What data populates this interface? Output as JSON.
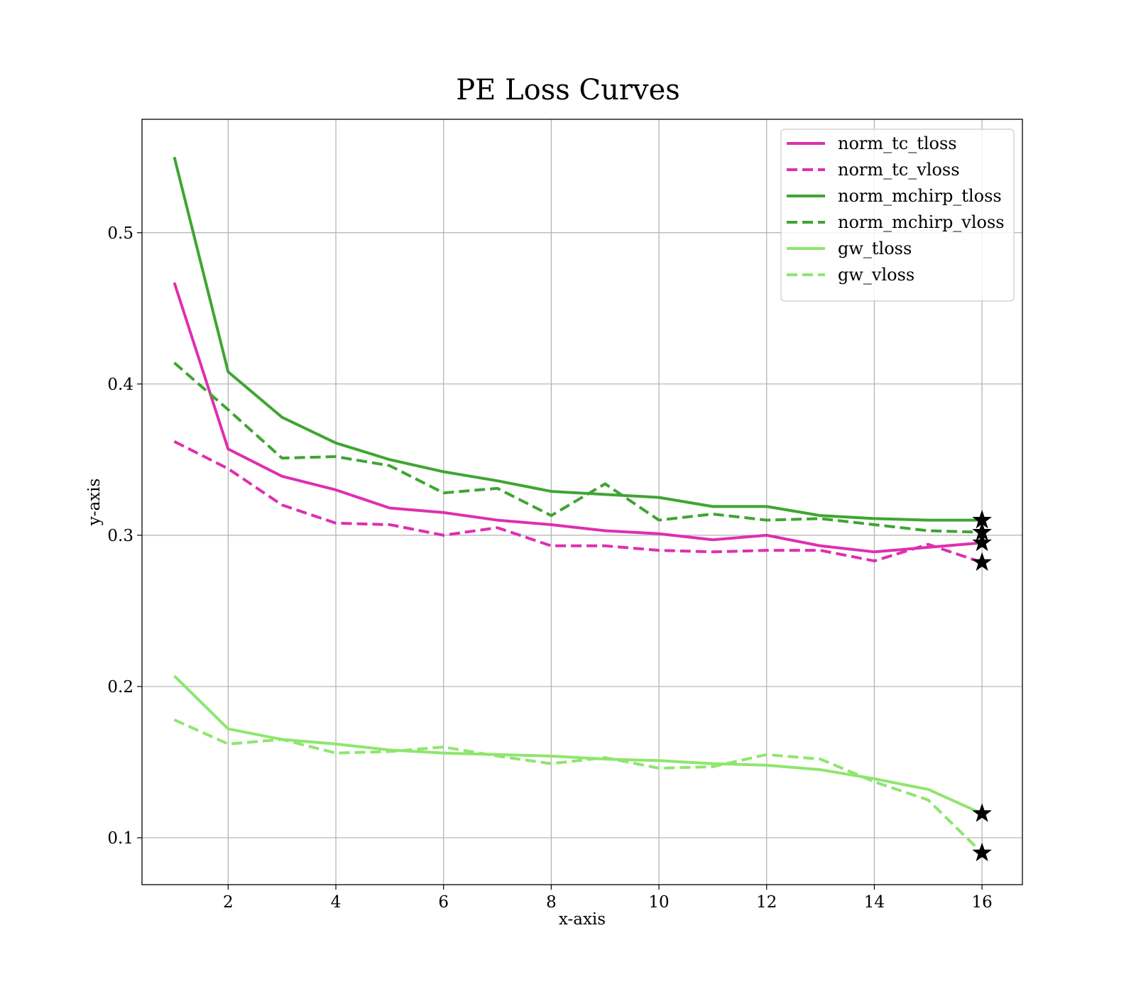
{
  "chart_data": {
    "type": "line",
    "title": "PE Loss Curves",
    "xlabel": "x-axis",
    "ylabel": "y-axis",
    "xlim": [
      0.4,
      16.75
    ],
    "ylim": [
      0.069,
      0.575
    ],
    "xticks": [
      2,
      4,
      6,
      8,
      10,
      12,
      14,
      16
    ],
    "yticks": [
      0.1,
      0.2,
      0.3,
      0.4,
      0.5
    ],
    "grid": true,
    "legend_position": "top-right",
    "x": [
      1,
      2,
      3,
      4,
      5,
      6,
      7,
      8,
      9,
      10,
      11,
      12,
      13,
      14,
      15,
      16
    ],
    "series": [
      {
        "name": "norm_tc_tloss",
        "color": "#de2fb0",
        "dash": "solid",
        "values": [
          0.467,
          0.357,
          0.339,
          0.33,
          0.318,
          0.315,
          0.31,
          0.307,
          0.303,
          0.301,
          0.297,
          0.3,
          0.293,
          0.289,
          0.292,
          0.295
        ]
      },
      {
        "name": "norm_tc_vloss",
        "color": "#de2fb0",
        "dash": "dashed",
        "values": [
          0.362,
          0.344,
          0.32,
          0.308,
          0.307,
          0.3,
          0.305,
          0.293,
          0.293,
          0.29,
          0.289,
          0.29,
          0.29,
          0.283,
          0.294,
          0.282
        ]
      },
      {
        "name": "norm_mchirp_tloss",
        "color": "#3fa532",
        "dash": "solid",
        "values": [
          0.55,
          0.408,
          0.378,
          0.361,
          0.35,
          0.342,
          0.336,
          0.329,
          0.327,
          0.325,
          0.319,
          0.319,
          0.313,
          0.311,
          0.31,
          0.31
        ]
      },
      {
        "name": "norm_mchirp_vloss",
        "color": "#3fa532",
        "dash": "dashed",
        "values": [
          0.414,
          0.383,
          0.351,
          0.352,
          0.346,
          0.328,
          0.331,
          0.313,
          0.334,
          0.31,
          0.314,
          0.31,
          0.311,
          0.307,
          0.303,
          0.302
        ]
      },
      {
        "name": "gw_tloss",
        "color": "#8ee66e",
        "dash": "solid",
        "values": [
          0.207,
          0.172,
          0.165,
          0.162,
          0.158,
          0.156,
          0.155,
          0.154,
          0.152,
          0.151,
          0.149,
          0.148,
          0.145,
          0.139,
          0.132,
          0.116
        ]
      },
      {
        "name": "gw_vloss",
        "color": "#8ee66e",
        "dash": "dashed",
        "values": [
          0.178,
          0.162,
          0.165,
          0.156,
          0.157,
          0.16,
          0.154,
          0.149,
          0.153,
          0.146,
          0.147,
          0.155,
          0.152,
          0.137,
          0.125,
          0.09
        ]
      }
    ]
  }
}
